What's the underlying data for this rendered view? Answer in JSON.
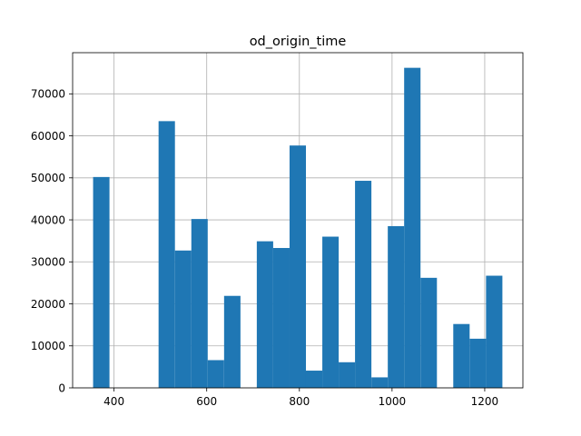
{
  "chart_data": {
    "type": "bar",
    "title": "od_origin_time",
    "xlabel": "",
    "ylabel": "",
    "xlim": [
      310.6,
      1282.4
    ],
    "ylim": [
      0,
      79800
    ],
    "grid": true,
    "bar_color": "#1f77b4",
    "bin_width": 35.33,
    "bins": [
      {
        "x0": 354.8,
        "value": 50200
      },
      {
        "x0": 390.1,
        "value": 0
      },
      {
        "x0": 425.5,
        "value": 0
      },
      {
        "x0": 460.8,
        "value": 0
      },
      {
        "x0": 496.1,
        "value": 63500
      },
      {
        "x0": 531.5,
        "value": 32700
      },
      {
        "x0": 566.8,
        "value": 40200
      },
      {
        "x0": 602.1,
        "value": 6600
      },
      {
        "x0": 637.5,
        "value": 21900
      },
      {
        "x0": 672.8,
        "value": 0
      },
      {
        "x0": 708.1,
        "value": 34900
      },
      {
        "x0": 743.5,
        "value": 33300
      },
      {
        "x0": 778.8,
        "value": 57700
      },
      {
        "x0": 814.1,
        "value": 4100
      },
      {
        "x0": 849.5,
        "value": 36000
      },
      {
        "x0": 884.8,
        "value": 6100
      },
      {
        "x0": 920.1,
        "value": 49300
      },
      {
        "x0": 955.5,
        "value": 2500
      },
      {
        "x0": 990.8,
        "value": 38500
      },
      {
        "x0": 1026.1,
        "value": 76200
      },
      {
        "x0": 1061.5,
        "value": 26200
      },
      {
        "x0": 1096.8,
        "value": 0
      },
      {
        "x0": 1132.1,
        "value": 15200
      },
      {
        "x0": 1167.5,
        "value": 11700
      },
      {
        "x0": 1202.8,
        "value": 26700
      }
    ],
    "x_ticks": [
      400,
      600,
      800,
      1000,
      1200
    ],
    "x_tick_labels": [
      "400",
      "600",
      "800",
      "1000",
      "1200"
    ],
    "y_ticks": [
      0,
      10000,
      20000,
      30000,
      40000,
      50000,
      60000,
      70000
    ],
    "y_tick_labels": [
      "0",
      "10000",
      "20000",
      "30000",
      "40000",
      "50000",
      "60000",
      "70000"
    ]
  }
}
